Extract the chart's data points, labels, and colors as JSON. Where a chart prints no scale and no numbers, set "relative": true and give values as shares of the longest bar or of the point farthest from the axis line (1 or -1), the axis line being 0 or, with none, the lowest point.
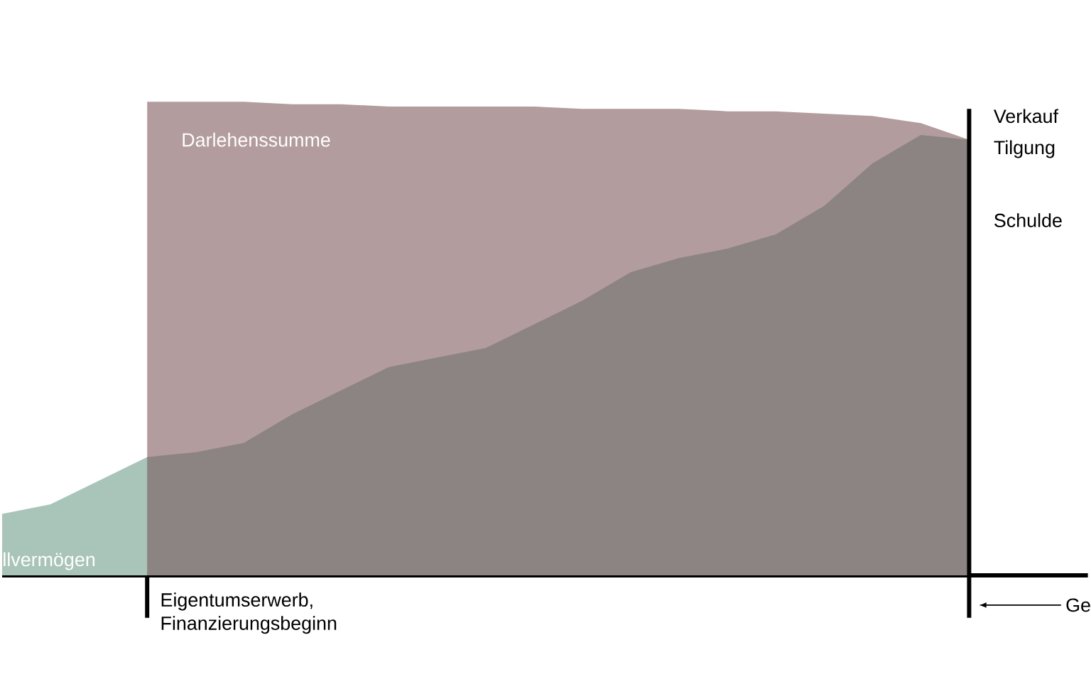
{
  "chart_data": {
    "type": "area",
    "relative": true,
    "tick_labels": false,
    "categories": [
      null,
      null,
      null,
      null,
      null,
      null,
      null,
      null,
      null,
      null,
      null,
      null,
      null,
      null,
      null,
      null,
      null,
      null,
      null,
      null,
      null
    ],
    "series": [
      {
        "color": "#a9c4b9",
        "values": [
          0.13,
          0.15,
          0.2,
          0.25,
          null,
          null,
          null,
          null,
          null,
          null,
          null,
          null,
          null,
          null,
          null,
          null,
          null,
          null,
          null,
          null,
          null
        ]
      },
      {
        "color": "#b39c9e",
        "values": [
          null,
          null,
          null,
          1.0,
          1.0,
          1.0,
          0.995,
          0.995,
          0.99,
          0.99,
          0.99,
          0.99,
          0.985,
          0.985,
          0.985,
          0.98,
          0.98,
          0.975,
          0.97,
          0.955,
          0.92
        ]
      },
      {
        "color": "#8c8482",
        "values": [
          null,
          null,
          null,
          0.25,
          0.26,
          0.28,
          0.34,
          0.39,
          0.44,
          0.46,
          0.48,
          0.53,
          0.58,
          0.64,
          0.67,
          0.69,
          0.72,
          0.78,
          0.87,
          0.93,
          0.92
        ]
      }
    ],
    "annotations": [
      "Darlehenssumme",
      "llvermögen",
      "Verkauf",
      "Tilgung",
      "Schulde",
      "Eigentumserwerb, Finanzierungsbeginn",
      "Ge"
    ]
  }
}
